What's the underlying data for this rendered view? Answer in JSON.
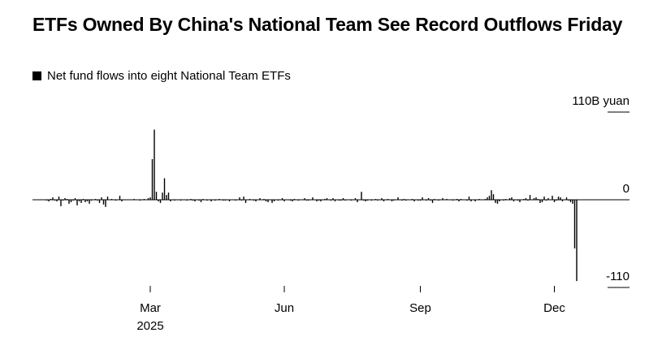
{
  "chart_data": {
    "type": "bar",
    "title": "ETFs Owned By China's National Team See Record Outflows Friday",
    "legend": [
      {
        "label": "Net fund flows into eight National Team ETFs",
        "color": "#000000"
      }
    ],
    "ylabel": "B yuan",
    "ylim": [
      -110,
      110
    ],
    "y_ticks": [
      {
        "value": 110,
        "label": "110B yuan"
      },
      {
        "value": 0,
        "label": "0"
      },
      {
        "value": -110,
        "label": "-110"
      }
    ],
    "x_range": [
      0,
      294
    ],
    "x_ticks": [
      {
        "index": 58,
        "label": "Mar",
        "sublabel": "2025"
      },
      {
        "index": 124,
        "label": "Jun",
        "sublabel": ""
      },
      {
        "index": 191,
        "label": "Sep",
        "sublabel": ""
      },
      {
        "index": 257,
        "label": "Dec",
        "sublabel": ""
      }
    ],
    "start_index": 6,
    "values": [
      0,
      -1,
      -2,
      1,
      3,
      -1,
      -2,
      4,
      -8,
      -1,
      2,
      1,
      -5,
      -3,
      -1,
      2,
      -7,
      -2,
      -4,
      1,
      -3,
      -2,
      -5,
      -1,
      0,
      1,
      -1,
      -4,
      3,
      -6,
      -9,
      4,
      0,
      1,
      0,
      -1,
      0,
      5,
      -2,
      0,
      0,
      0,
      0,
      0,
      1,
      0,
      0,
      -1,
      0,
      1,
      0,
      2,
      3,
      51,
      88,
      10,
      -2,
      -4,
      9,
      27,
      6,
      9,
      -2,
      0,
      -1,
      0,
      0,
      -1,
      0,
      0,
      -1,
      0,
      1,
      -1,
      -2,
      0,
      -1,
      -3,
      1,
      0,
      -1,
      0,
      -2,
      0,
      -1,
      0,
      1,
      0,
      -1,
      -1,
      0,
      -2,
      0,
      0,
      -1,
      0,
      3,
      -1,
      4,
      -4,
      0,
      1,
      0,
      -1,
      -2,
      0,
      2,
      0,
      1,
      -2,
      -3,
      0,
      -4,
      -2,
      0,
      -1,
      0,
      2,
      -2,
      0,
      0,
      -1,
      -2,
      1,
      0,
      -1,
      0,
      0,
      2,
      -1,
      -1,
      0,
      3,
      0,
      -2,
      -1,
      -2,
      0,
      1,
      2,
      0,
      -1,
      2,
      -2,
      0,
      -1,
      -1,
      2,
      -1,
      0,
      0,
      -1,
      0,
      2,
      -3,
      0,
      10,
      -1,
      -2,
      -1,
      0,
      -1,
      0,
      1,
      -1,
      0,
      2,
      -2,
      0,
      1,
      0,
      -2,
      -1,
      0,
      3,
      0,
      -1,
      1,
      -1,
      0,
      0,
      1,
      -2,
      0,
      -1,
      -1,
      3,
      0,
      -1,
      2,
      -1,
      -4,
      1,
      0,
      -1,
      0,
      2,
      0,
      1,
      0,
      0,
      -1,
      0,
      1,
      -2,
      1,
      0,
      0,
      -1,
      4,
      -2,
      0,
      -2,
      0,
      1,
      0,
      0,
      1,
      3,
      5,
      12,
      7,
      -4,
      -5,
      -2,
      0,
      -1,
      1,
      0,
      2,
      3,
      -2,
      0,
      -1,
      -3,
      0,
      1,
      2,
      -1,
      6,
      0,
      2,
      3,
      1,
      -4,
      -3,
      4,
      -1,
      2,
      0,
      5,
      -3,
      -1,
      4,
      3,
      -2,
      0,
      3,
      -1,
      -3,
      -5,
      -61,
      -102
    ]
  }
}
